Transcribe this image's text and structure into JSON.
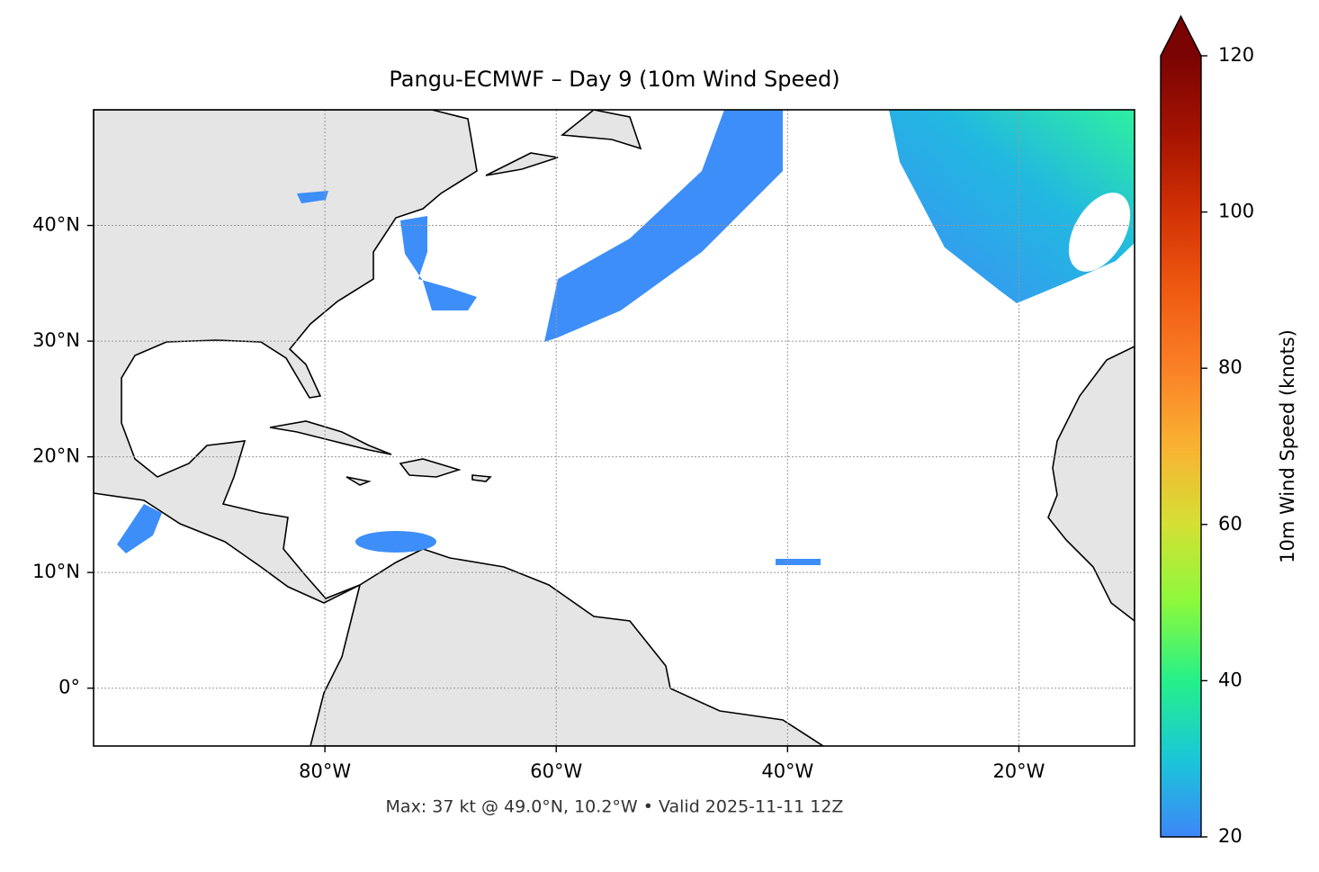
{
  "chart_data": {
    "type": "map",
    "title": "Pangu-ECMWF – Day 9 (10m Wind Speed)",
    "xlim": [
      -100,
      -10
    ],
    "ylim": [
      -5,
      50
    ],
    "xticks": [
      {
        "value": -80,
        "label": "80°W"
      },
      {
        "value": -60,
        "label": "60°W"
      },
      {
        "value": -40,
        "label": "40°W"
      },
      {
        "value": -20,
        "label": "20°W"
      }
    ],
    "yticks": [
      {
        "value": 0,
        "label": "0°"
      },
      {
        "value": 10,
        "label": "10°N"
      },
      {
        "value": 20,
        "label": "20°N"
      },
      {
        "value": 30,
        "label": "30°N"
      },
      {
        "value": 40,
        "label": "40°N"
      }
    ],
    "grid": true,
    "colorbar": {
      "label": "10m Wind Speed (knots)",
      "lim": [
        20,
        120
      ],
      "ticks": [
        20,
        40,
        60,
        80,
        100,
        120
      ],
      "extend": "max"
    },
    "annotation": "Max: 37 kt @ 49.0°N, 10.2°W • Valid 2025-11-11 12Z"
  }
}
